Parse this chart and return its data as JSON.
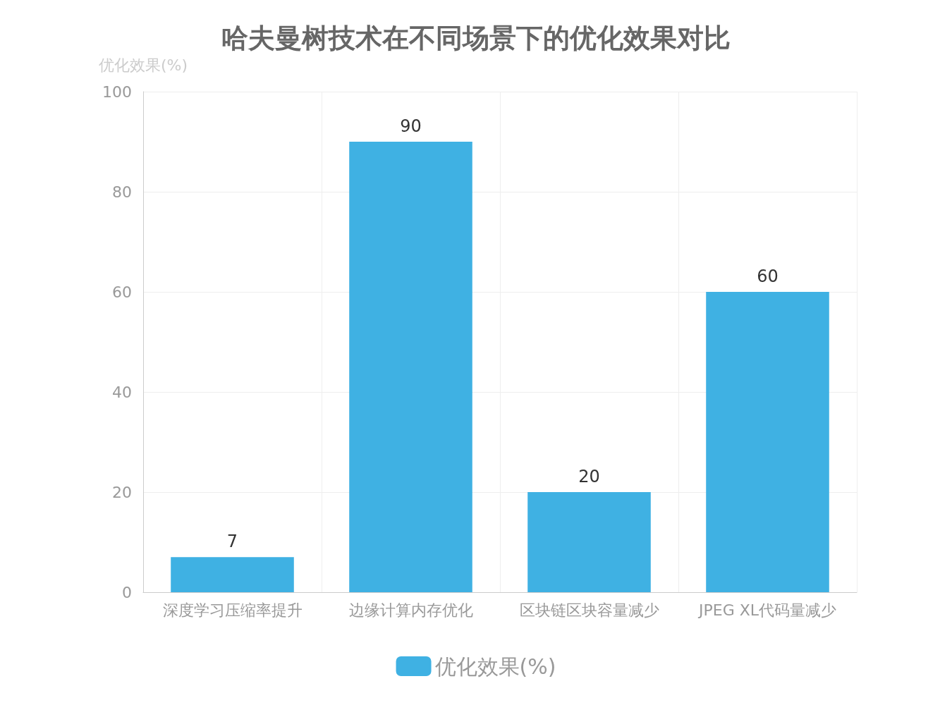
{
  "chart_data": {
    "type": "bar",
    "title": "哈夫曼树技术在不同场景下的优化效果对比",
    "ylabel": "优化效果(%)",
    "categories": [
      "深度学习压缩率提升",
      "边缘计算内存优化",
      "区块链区块容量减少",
      "JPEG XL代码量减少"
    ],
    "series": [
      {
        "name": "优化效果(%)",
        "color": "#3fb1e3",
        "values": [
          7,
          90,
          20,
          60
        ]
      }
    ],
    "ylim": [
      0,
      100
    ],
    "yticks": [
      0,
      20,
      40,
      60,
      80,
      100
    ],
    "grid": true,
    "legend": "bottom",
    "data_labels": true
  }
}
